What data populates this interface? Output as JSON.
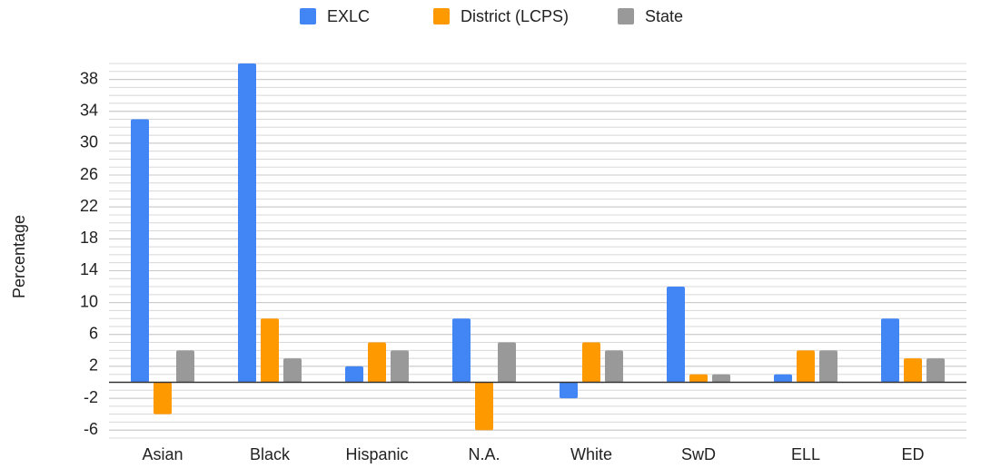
{
  "chart_data": {
    "type": "bar",
    "categories": [
      "Asian",
      "Black",
      "Hispanic",
      "N.A.",
      "White",
      "SwD",
      "ELL",
      "ED"
    ],
    "series": [
      {
        "name": "EXLC",
        "color": "#4285f4",
        "values": [
          33,
          40,
          2,
          8,
          -2,
          12,
          1,
          8
        ]
      },
      {
        "name": "District (LCPS)",
        "color": "#ff9900",
        "values": [
          -4,
          8,
          5,
          -6,
          5,
          1,
          4,
          3
        ]
      },
      {
        "name": "State",
        "color": "#999999",
        "values": [
          4,
          3,
          4,
          5,
          4,
          1,
          4,
          3
        ]
      }
    ],
    "y_label": "Percentage",
    "ylim": [
      -7,
      40
    ],
    "yticks": [
      -6,
      -2,
      2,
      6,
      10,
      14,
      18,
      22,
      26,
      30,
      34,
      38
    ],
    "grid": true,
    "minor_grid": true,
    "legend": "top"
  }
}
